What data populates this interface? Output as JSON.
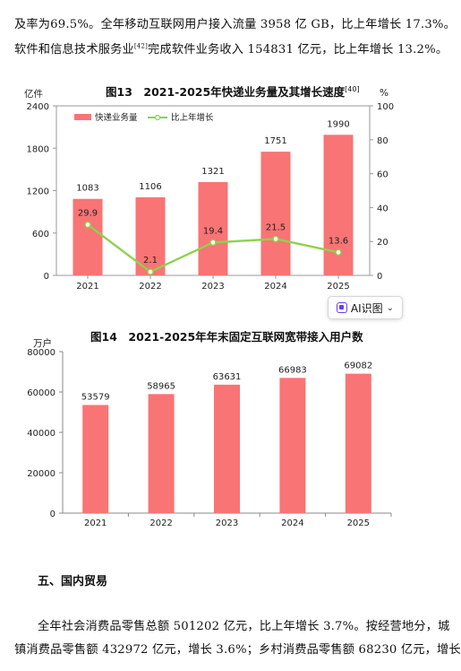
{
  "paragraph_top": {
    "line1": "及率为69.5%。全年移动互联网用户接入流量 3958 亿 GB，比上年增长 17.3%。",
    "line2": "软件和信息技术服务业",
    "line2_mark": "[42]",
    "line2_rest": "完成软件业务收入 154831 亿元，比上年增长 13.2%。"
  },
  "figure13": {
    "title": "图13　2021-2025年快递业务量及其增长速度",
    "title_ref": "[40]",
    "left_unit": "亿件",
    "right_unit": "%"
  },
  "figure14": {
    "title": "图14　2021-2025年年末固定互联网宽带接入用户数",
    "unit": "万户"
  },
  "ai_button": {
    "label": "AI识图",
    "icon": "ai-scan-icon",
    "chevron": "chevron-down-icon"
  },
  "section": {
    "heading": "五、国内贸易"
  },
  "paragraph_bottom": {
    "line1": "全年社会消费品零售总额 501202 亿元，比上年增长 3.7%。按经营地分，城",
    "line2": "镇消费品零售额 432972 亿元，增长 3.6%；乡村消费品零售额 68230 亿元，增长"
  },
  "chart_data": [
    {
      "type": "bar",
      "categories": [
        "2021",
        "2022",
        "2023",
        "2024",
        "2025"
      ],
      "series": [
        {
          "name": "快递业务量",
          "type": "bar",
          "axis": "left",
          "values": [
            1083,
            1106,
            1321,
            1751,
            1990
          ],
          "color": "#f97474"
        },
        {
          "name": "比上年增长",
          "type": "line",
          "axis": "right",
          "values": [
            29.9,
            2.1,
            19.4,
            21.5,
            13.6
          ],
          "color": "#8fd14f"
        }
      ],
      "ylim": [
        0,
        2400
      ],
      "yticks": [
        0,
        600,
        1200,
        1800,
        2400
      ],
      "y2lim": [
        0,
        100
      ],
      "y2ticks": [
        0,
        20,
        40,
        60,
        80,
        100
      ],
      "legend": "top-left",
      "grid": false
    },
    {
      "type": "bar",
      "categories": [
        "2021",
        "2022",
        "2023",
        "2024",
        "2025"
      ],
      "series": [
        {
          "values": [
            53579,
            58965,
            63631,
            66983,
            69082
          ],
          "color": "#f97474"
        }
      ],
      "ylim": [
        0,
        80000
      ],
      "yticks": [
        0,
        20000,
        40000,
        60000,
        80000
      ],
      "grid": false
    }
  ]
}
